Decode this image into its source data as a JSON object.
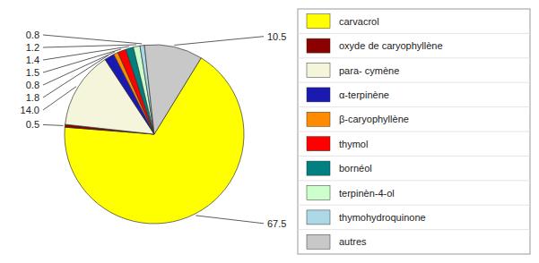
{
  "chart_data": {
    "type": "pie",
    "categories": [
      "carvacrol",
      "oxyde de caryophyllène",
      "para- cymène",
      "α-terpinène",
      "β-caryophyllène",
      "thymol",
      "bornéol",
      "terpinèn-4-ol",
      "thymohydroquinone",
      "autres"
    ],
    "values": [
      67.5,
      0.5,
      14.0,
      1.8,
      0.8,
      1.5,
      1.4,
      1.2,
      0.8,
      10.5
    ],
    "value_labels": [
      "67.5",
      "0.5",
      "14.0",
      "1.8",
      "0.8",
      "1.5",
      "1.4",
      "1.2",
      "0.8",
      "10.5"
    ],
    "colors": [
      "#ffff00",
      "#8b0000",
      "#f5f5dc",
      "#1a1ab0",
      "#ff8c00",
      "#ff0000",
      "#008080",
      "#ccffcc",
      "#add8e6",
      "#c8c8c8"
    ],
    "data_labels": true,
    "legend": "right"
  }
}
